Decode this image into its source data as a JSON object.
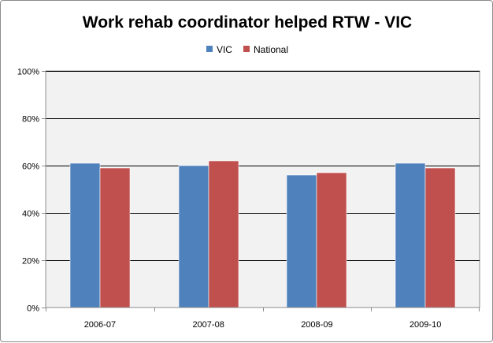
{
  "chart_data": {
    "type": "bar",
    "title": "Work rehab coordinator helped RTW -  VIC",
    "xlabel": "",
    "ylabel": "",
    "categories": [
      "2006-07",
      "2007-08",
      "2008-09",
      "2009-10"
    ],
    "series": [
      {
        "name": "VIC",
        "values": [
          61,
          60,
          56,
          61
        ],
        "color": "#4f81bd"
      },
      {
        "name": "National",
        "values": [
          59,
          62,
          57,
          59
        ],
        "color": "#c0504d"
      }
    ],
    "ylim": [
      0,
      100
    ],
    "yticks": [
      0,
      20,
      40,
      60,
      80,
      100
    ],
    "ytick_labels": [
      "0%",
      "20%",
      "40%",
      "60%",
      "80%",
      "100%"
    ],
    "grid": true,
    "legend_position": "top",
    "plot_background": "#f2f2f2",
    "gridline_color": "#000000"
  }
}
